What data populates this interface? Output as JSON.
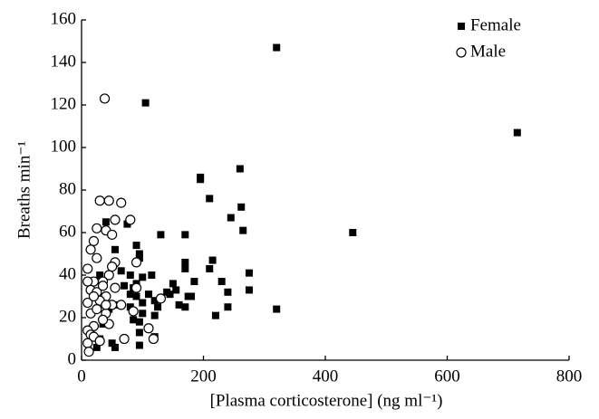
{
  "chart_data": {
    "type": "scatter",
    "x_label": "[Plasma corticosterone] (ng ml⁻¹)",
    "y_label": "Breaths min⁻¹",
    "xlim": [
      0,
      800
    ],
    "xticks": [
      0,
      200,
      400,
      600,
      800
    ],
    "ylim": [
      0,
      160
    ],
    "yticks": [
      0,
      20,
      40,
      60,
      80,
      100,
      120,
      140,
      160
    ],
    "grid": false,
    "legend": "upper right",
    "series": [
      {
        "name": "Female",
        "marker": "square",
        "color": "#000000",
        "x": [
          320,
          105,
          715,
          195,
          195,
          260,
          210,
          262,
          245,
          265,
          445,
          130,
          170,
          90,
          95,
          95,
          55,
          40,
          75,
          65,
          80,
          100,
          115,
          90,
          85,
          80,
          90,
          100,
          110,
          120,
          125,
          140,
          150,
          145,
          155,
          160,
          170,
          175,
          180,
          170,
          170,
          210,
          215,
          185,
          230,
          240,
          220,
          240,
          275,
          275,
          320,
          95,
          95,
          95,
          120,
          120,
          50,
          55,
          25,
          30,
          35,
          45,
          60,
          70,
          80,
          100,
          30,
          85
        ],
        "values": [
          147,
          121,
          107,
          86,
          85,
          90,
          76,
          72,
          67,
          61,
          60,
          59,
          59,
          54,
          50,
          48,
          52,
          65,
          64,
          42,
          40,
          39,
          40,
          36,
          34,
          31,
          30,
          27,
          31,
          28,
          25,
          32,
          36,
          31,
          33,
          26,
          25,
          30,
          30,
          43,
          46,
          43,
          47,
          37,
          37,
          32,
          21,
          25,
          41,
          33,
          24,
          18,
          13,
          7,
          21,
          11,
          8,
          6,
          6,
          10,
          17,
          24,
          26,
          35,
          25,
          22,
          40,
          19
        ]
      },
      {
        "name": "Male",
        "marker": "circle",
        "color": "#000000",
        "x": [
          38,
          30,
          45,
          65,
          25,
          40,
          50,
          55,
          80,
          20,
          15,
          10,
          25,
          55,
          50,
          90,
          45,
          20,
          10,
          35,
          55,
          15,
          25,
          40,
          30,
          10,
          15,
          25,
          40,
          50,
          65,
          45,
          35,
          20,
          10,
          15,
          20,
          30,
          10,
          12,
          70,
          85,
          110,
          118,
          130,
          90,
          40,
          20,
          35
        ],
        "values": [
          123,
          75,
          75,
          74,
          62,
          61,
          59,
          66,
          66,
          56,
          52,
          43,
          48,
          46,
          44,
          46,
          40,
          37,
          37,
          37,
          34,
          33,
          32,
          30,
          28,
          27,
          22,
          24,
          22,
          26,
          26,
          17,
          19,
          16,
          14,
          12,
          11,
          9,
          8,
          4,
          10,
          23,
          15,
          10,
          29,
          34,
          26,
          30,
          35
        ]
      }
    ]
  }
}
